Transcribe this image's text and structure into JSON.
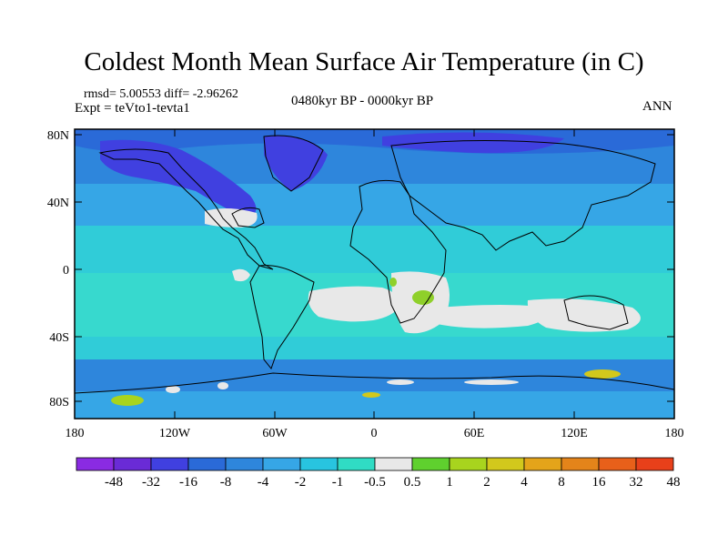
{
  "title": "Coldest Month Mean Surface Air Temperature (in C)",
  "stats": "rmsd= 5.00553 diff= -2.96262",
  "experiment": "Expt = teVto1-tevta1",
  "period": "0480kyr BP - 0000kyr BP",
  "season": "ANN",
  "lat_labels": [
    "80N",
    "40N",
    "0",
    "40S",
    "80S"
  ],
  "lon_labels": [
    "180",
    "120W",
    "60W",
    "0",
    "60E",
    "120E",
    "180"
  ],
  "colorbar": {
    "colors": [
      "#8a2be2",
      "#6a2bd6",
      "#4040e0",
      "#2a6ad8",
      "#2e86dc",
      "#36a6e6",
      "#28c4e0",
      "#30dcc4",
      "#e8e8e8",
      "#5fd02e",
      "#a8d41e",
      "#d2c81c",
      "#e4a41a",
      "#e4841a",
      "#e8601a",
      "#e8401a"
    ],
    "labels": [
      "-48",
      "-32",
      "-16",
      "-8",
      "-4",
      "-2",
      "-1",
      "-0.5",
      "0.5",
      "1",
      "2",
      "4",
      "8",
      "16",
      "32",
      "48"
    ]
  }
}
